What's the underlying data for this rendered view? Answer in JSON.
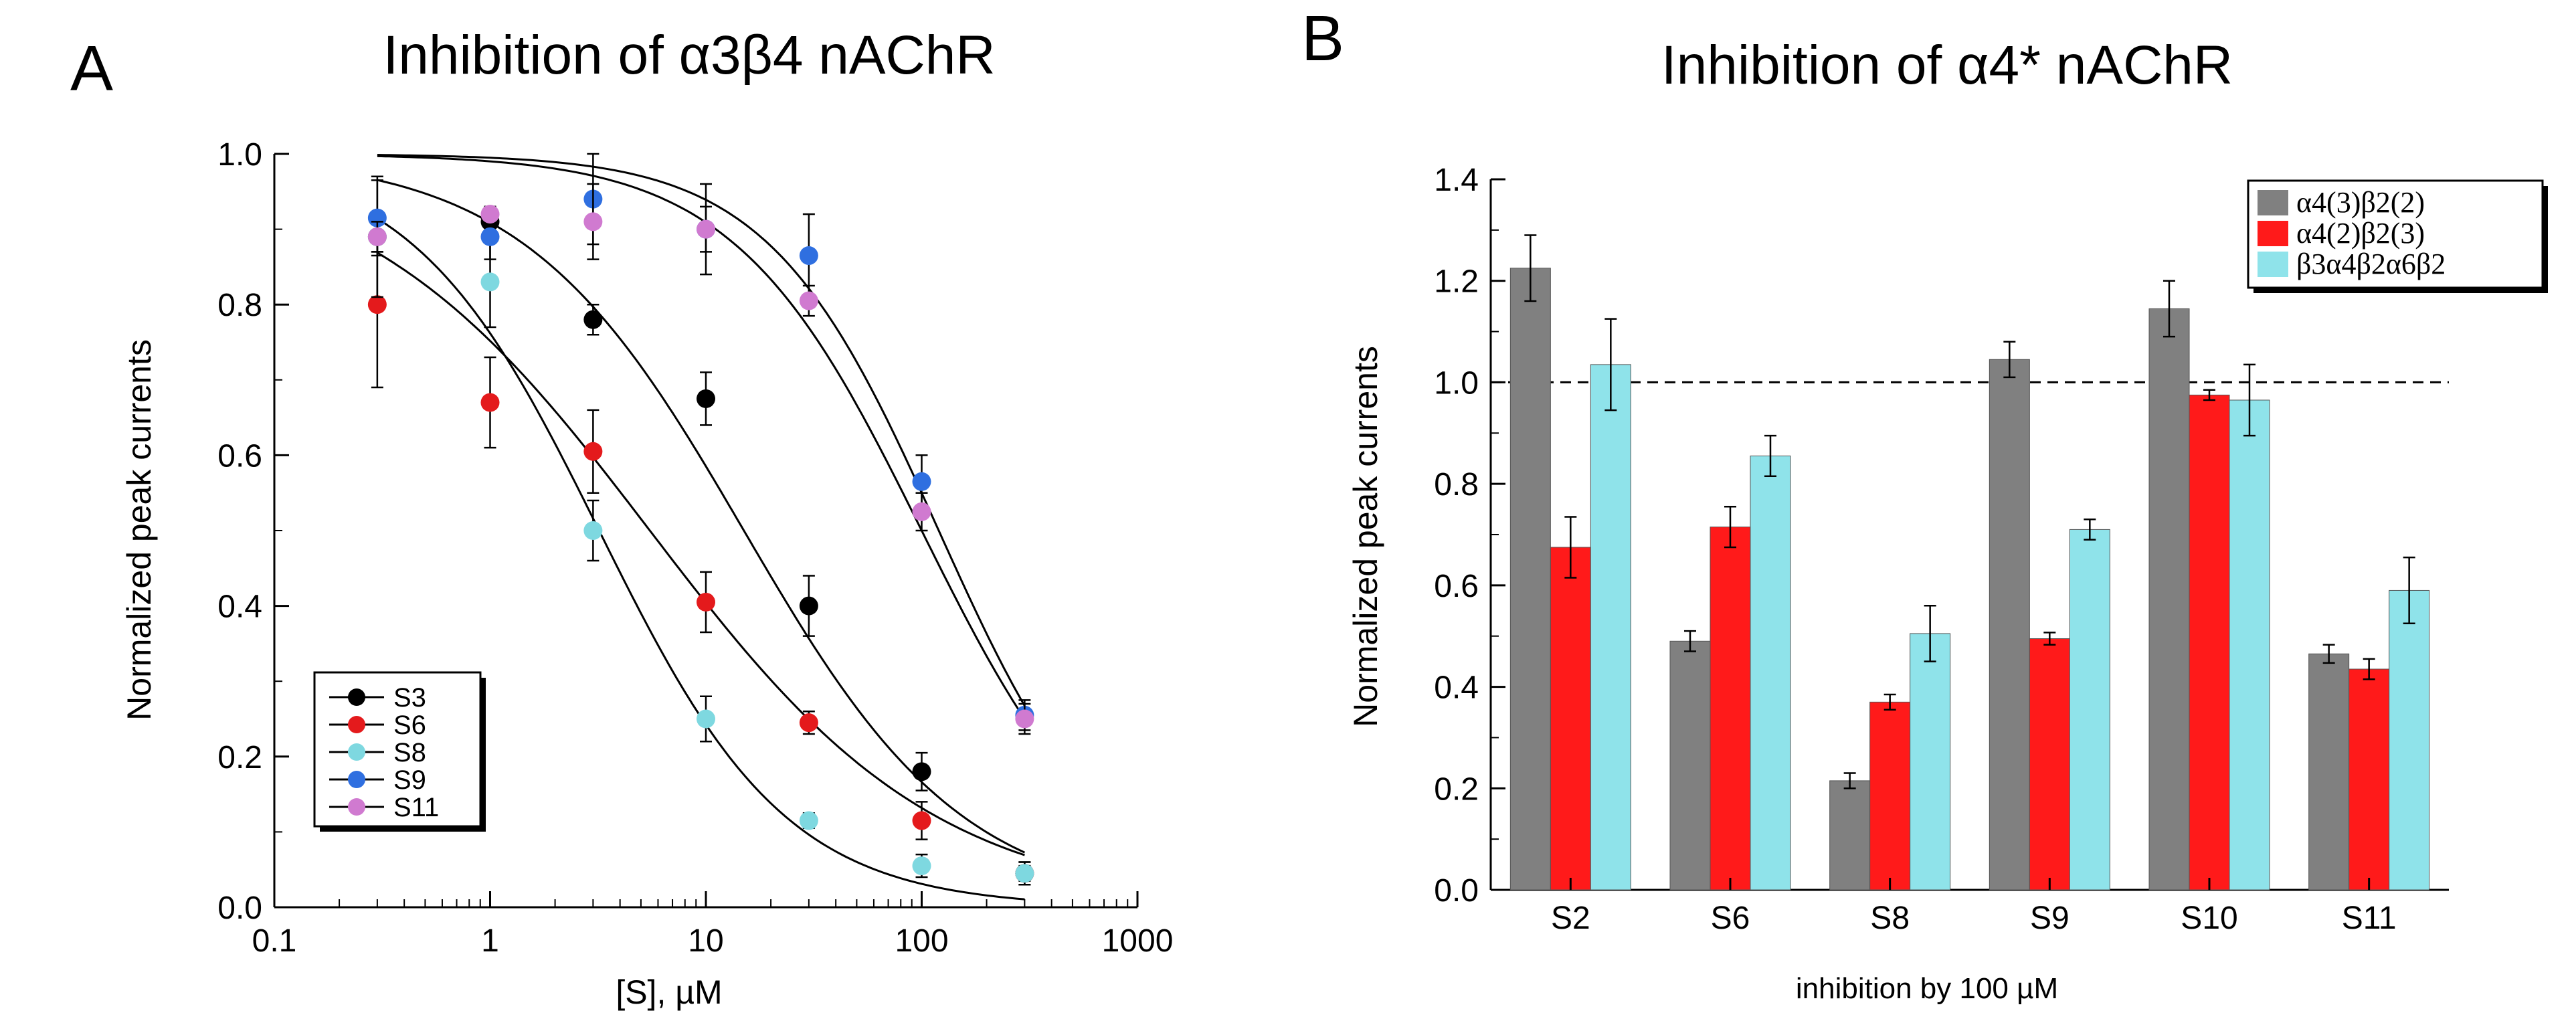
{
  "panels": {
    "a": {
      "letter": "A"
    },
    "b": {
      "letter": "B"
    }
  },
  "chart_data": [
    {
      "type": "scatter",
      "title": "Inhibition of α3β4 nAChR",
      "xlabel": "[S], µM",
      "ylabel": "Normalized peak currents",
      "xscale": "log",
      "xlim": [
        0.1,
        1000
      ],
      "ylim": [
        0,
        1.0
      ],
      "xticks": [
        0.1,
        1,
        10,
        100,
        1000
      ],
      "xtick_labels": [
        "0.1",
        "1",
        "10",
        "100",
        "1000"
      ],
      "yticks": [
        0,
        0.2,
        0.4,
        0.6,
        0.8,
        1.0
      ],
      "ytick_labels": [
        "0.0",
        "0.2",
        "0.4",
        "0.6",
        "0.8",
        "1.0"
      ],
      "legend_position": "bottom-left",
      "x": [
        0.3,
        1,
        3,
        10,
        30,
        100,
        300
      ],
      "series": [
        {
          "name": "S3",
          "color": "#000000",
          "values": [
            0.89,
            0.91,
            0.78,
            0.675,
            0.4,
            0.18,
            0.045
          ],
          "errors": [
            0.02,
            0.02,
            0.02,
            0.035,
            0.04,
            0.025,
            0.015
          ],
          "fit": {
            "ic50": 15,
            "hill": 0.85
          }
        },
        {
          "name": "S6",
          "color": "#e41a1c",
          "values": [
            0.8,
            0.67,
            0.605,
            0.405,
            0.245,
            0.115,
            0.045
          ],
          "errors": [
            0.11,
            0.06,
            0.055,
            0.04,
            0.015,
            0.025,
            0.015
          ],
          "fit": {
            "ic50": 5.5,
            "hill": 0.65
          }
        },
        {
          "name": "S8",
          "color": "#7ed8e0",
          "values": [
            0.89,
            0.83,
            0.5,
            0.25,
            0.115,
            0.055,
            0.045
          ],
          "errors": [
            0.08,
            0.06,
            0.04,
            0.03,
            0.01,
            0.015,
            0.01
          ],
          "fit": {
            "ic50": 3.2,
            "hill": 1.0
          }
        },
        {
          "name": "S9",
          "color": "#2f6fe0",
          "values": [
            0.915,
            0.89,
            0.94,
            0.9,
            0.865,
            0.565,
            0.255
          ],
          "errors": [
            0.05,
            0.03,
            0.06,
            0.06,
            0.055,
            0.035,
            0.02
          ],
          "fit": {
            "ic50": 120,
            "hill": 1.1
          }
        },
        {
          "name": "S11",
          "color": "#d07ad0",
          "values": [
            0.89,
            0.92,
            0.91,
            0.9,
            0.805,
            0.525,
            0.25
          ],
          "errors": [
            0.02,
            0.01,
            0.05,
            0.03,
            0.02,
            0.025,
            0.02
          ],
          "fit": {
            "ic50": 100,
            "hill": 1.0
          }
        }
      ]
    },
    {
      "type": "bar",
      "title": "Inhibition of α4* nAChR",
      "xlabel": "inhibition by 100 µM",
      "ylabel": "Normalized peak currents",
      "categories": [
        "S2",
        "S6",
        "S8",
        "S9",
        "S10",
        "S11"
      ],
      "ylim": [
        0,
        1.4
      ],
      "yticks": [
        0,
        0.2,
        0.4,
        0.6,
        0.8,
        1.0,
        1.2,
        1.4
      ],
      "ytick_labels": [
        "0.0",
        "0.2",
        "0.4",
        "0.6",
        "0.8",
        "1.0",
        "1.2",
        "1.4"
      ],
      "reference_line": 1.0,
      "legend_position": "top-right",
      "series": [
        {
          "name": "α4(3)β2(2)",
          "color": "#808080",
          "values": [
            1.225,
            0.49,
            0.215,
            1.045,
            1.145,
            0.465
          ],
          "errors": [
            0.065,
            0.02,
            0.015,
            0.035,
            0.055,
            0.018
          ]
        },
        {
          "name": "α4(2)β2(3)",
          "color": "#ff1a1a",
          "values": [
            0.675,
            0.715,
            0.37,
            0.495,
            0.975,
            0.435
          ],
          "errors": [
            0.06,
            0.04,
            0.015,
            0.012,
            0.01,
            0.02
          ]
        },
        {
          "name": "β3α4β2α6β2",
          "color": "#8fe3ea",
          "values": [
            1.035,
            0.855,
            0.505,
            0.71,
            0.965,
            0.59
          ],
          "errors": [
            0.09,
            0.04,
            0.055,
            0.02,
            0.07,
            0.065
          ]
        }
      ]
    }
  ]
}
